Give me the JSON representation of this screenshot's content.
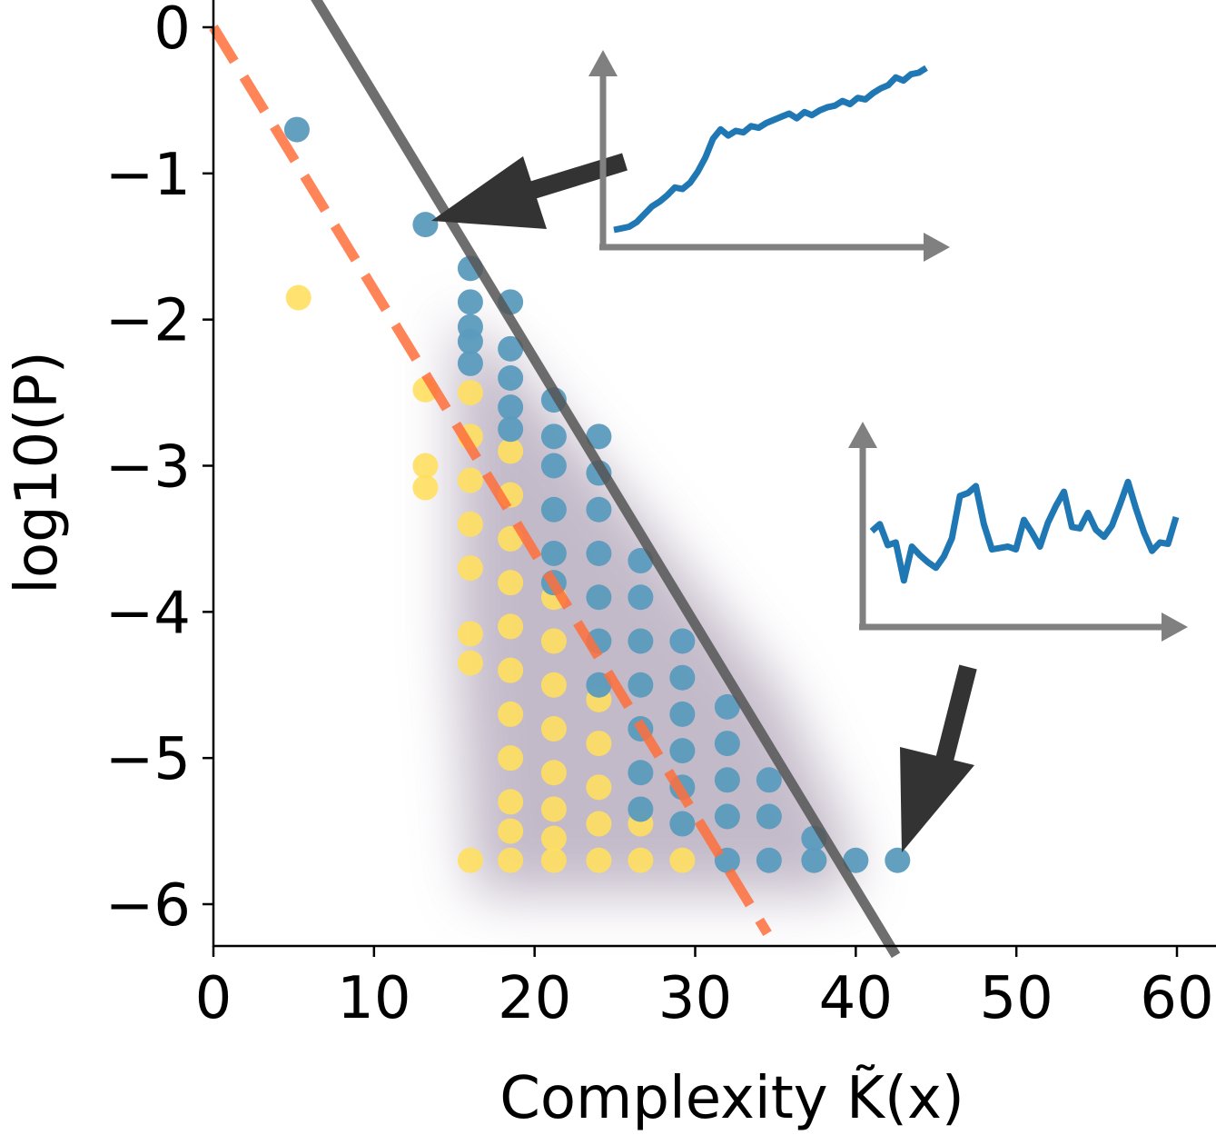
{
  "chart_data": {
    "type": "scatter",
    "xlabel": "Complexity K̃(x)",
    "ylabel": "log10(P)",
    "xlim": [
      0,
      60
    ],
    "ylim": [
      -6.3,
      0.15
    ],
    "x_ticks": [
      0,
      10,
      20,
      30,
      40,
      50,
      60
    ],
    "y_ticks": [
      0,
      -1,
      -2,
      -3,
      -4,
      -5,
      -6
    ],
    "grid": false,
    "colors": {
      "blue_points": "#5b9bbd",
      "yellow_points": "#ffdf61",
      "gray_line": "#555555",
      "orange_dashed_line": "#ff6f3c",
      "inset_line": "#1f77b4",
      "inset_axes": "#808080",
      "arrows": "#333333"
    },
    "series": [
      {
        "points": [
          [
            5.2,
            -0.7
          ],
          [
            13.2,
            -1.35
          ],
          [
            16,
            -1.65
          ],
          [
            16,
            -1.88
          ],
          [
            16,
            -2.05
          ],
          [
            16,
            -2.15
          ],
          [
            16,
            -2.3
          ],
          [
            18.5,
            -1.88
          ],
          [
            18.5,
            -2.2
          ],
          [
            18.5,
            -2.4
          ],
          [
            18.5,
            -2.6
          ],
          [
            18.5,
            -2.75
          ],
          [
            21.2,
            -2.55
          ],
          [
            21.2,
            -2.8
          ],
          [
            21.2,
            -3.0
          ],
          [
            21.2,
            -3.3
          ],
          [
            21.2,
            -3.6
          ],
          [
            21.2,
            -3.8
          ],
          [
            24,
            -2.8
          ],
          [
            24,
            -3.05
          ],
          [
            24,
            -3.3
          ],
          [
            24,
            -3.6
          ],
          [
            24,
            -3.9
          ],
          [
            24,
            -4.2
          ],
          [
            24,
            -4.5
          ],
          [
            26.6,
            -3.65
          ],
          [
            26.6,
            -3.9
          ],
          [
            26.6,
            -4.2
          ],
          [
            26.6,
            -4.5
          ],
          [
            26.6,
            -4.8
          ],
          [
            26.6,
            -5.1
          ],
          [
            26.6,
            -5.35
          ],
          [
            29.2,
            -4.2
          ],
          [
            29.2,
            -4.45
          ],
          [
            29.2,
            -4.7
          ],
          [
            29.2,
            -4.95
          ],
          [
            29.2,
            -5.2
          ],
          [
            29.2,
            -5.45
          ],
          [
            32,
            -4.65
          ],
          [
            32,
            -4.9
          ],
          [
            32,
            -5.15
          ],
          [
            32,
            -5.4
          ],
          [
            32,
            -5.7
          ],
          [
            34.6,
            -5.15
          ],
          [
            34.6,
            -5.4
          ],
          [
            34.6,
            -5.7
          ],
          [
            37.4,
            -5.55
          ],
          [
            37.4,
            -5.7
          ],
          [
            40,
            -5.7
          ],
          [
            42.6,
            -5.7
          ]
        ]
      },
      {
        "points": [
          [
            5.3,
            -1.85
          ],
          [
            13.2,
            -2.48
          ],
          [
            13.2,
            -3.0
          ],
          [
            13.2,
            -3.15
          ],
          [
            16,
            -2.5
          ],
          [
            16,
            -2.8
          ],
          [
            16,
            -3.1
          ],
          [
            16,
            -3.4
          ],
          [
            16,
            -3.7
          ],
          [
            16,
            -4.15
          ],
          [
            16,
            -4.35
          ],
          [
            16,
            -5.7
          ],
          [
            18.5,
            -2.9
          ],
          [
            18.5,
            -3.2
          ],
          [
            18.5,
            -3.5
          ],
          [
            18.5,
            -3.8
          ],
          [
            18.5,
            -4.1
          ],
          [
            18.5,
            -4.4
          ],
          [
            18.5,
            -4.7
          ],
          [
            18.5,
            -5.0
          ],
          [
            18.5,
            -5.3
          ],
          [
            18.5,
            -5.5
          ],
          [
            18.5,
            -5.7
          ],
          [
            21.2,
            -3.9
          ],
          [
            21.2,
            -4.2
          ],
          [
            21.2,
            -4.5
          ],
          [
            21.2,
            -4.8
          ],
          [
            21.2,
            -5.1
          ],
          [
            21.2,
            -5.35
          ],
          [
            21.2,
            -5.55
          ],
          [
            21.2,
            -5.7
          ],
          [
            24,
            -4.6
          ],
          [
            24,
            -4.9
          ],
          [
            24,
            -5.2
          ],
          [
            24,
            -5.45
          ],
          [
            24,
            -5.7
          ],
          [
            26.6,
            -5.45
          ],
          [
            26.6,
            -5.7
          ],
          [
            29.2,
            -5.7
          ]
        ]
      }
    ],
    "lines": [
      {
        "style": "solid",
        "from": [
          5.8,
          0.3
        ],
        "to": [
          42.5,
          -6.35
        ]
      },
      {
        "style": "dashed",
        "from": [
          0,
          0
        ],
        "to": [
          34.5,
          -6.2
        ]
      }
    ]
  },
  "insets": [
    {
      "values": [
        0.0,
        0.01,
        0.02,
        0.05,
        0.1,
        0.15,
        0.18,
        0.22,
        0.27,
        0.26,
        0.3,
        0.37,
        0.46,
        0.58,
        0.64,
        0.6,
        0.63,
        0.62,
        0.66,
        0.65,
        0.68,
        0.7,
        0.72,
        0.74,
        0.71,
        0.75,
        0.73,
        0.76,
        0.78,
        0.79,
        0.82,
        0.8,
        0.84,
        0.83,
        0.87,
        0.9,
        0.92,
        0.97,
        0.95,
        0.99,
        1.0,
        1.03
      ]
    },
    {
      "values": [
        0.5,
        0.55,
        0.4,
        0.42,
        0.15,
        0.39,
        0.33,
        0.28,
        0.24,
        0.32,
        0.45,
        0.75,
        0.77,
        0.82,
        0.55,
        0.37,
        0.38,
        0.39,
        0.37,
        0.58,
        0.49,
        0.39,
        0.56,
        0.68,
        0.78,
        0.53,
        0.52,
        0.63,
        0.51,
        0.46,
        0.54,
        0.69,
        0.85,
        0.66,
        0.49,
        0.36,
        0.42,
        0.41,
        0.6
      ]
    }
  ]
}
